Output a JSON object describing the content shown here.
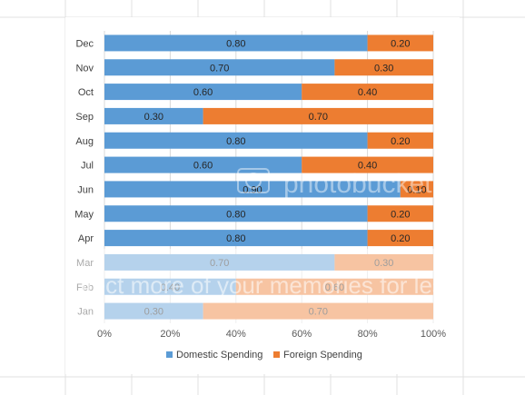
{
  "chart_data": {
    "type": "bar",
    "orientation": "horizontal",
    "stacked": "percent",
    "categories": [
      "Dec",
      "Nov",
      "Oct",
      "Sep",
      "Aug",
      "Jul",
      "Jun",
      "May",
      "Apr",
      "Mar",
      "Feb",
      "Jan"
    ],
    "series": [
      {
        "name": "Domestic Spending",
        "color": "#5b9bd5",
        "values": [
          0.8,
          0.7,
          0.6,
          0.3,
          0.8,
          0.6,
          0.9,
          0.8,
          0.8,
          0.7,
          0.4,
          0.3
        ],
        "labels": [
          "0.80",
          "0.70",
          "0.60",
          "0.30",
          "0.80",
          "0.60",
          "0.90",
          "0.80",
          "0.80",
          "0.70",
          "0.40",
          "0.30"
        ]
      },
      {
        "name": "Foreign Spending",
        "color": "#ed7d31",
        "values": [
          0.2,
          0.3,
          0.4,
          0.7,
          0.2,
          0.4,
          0.1,
          0.2,
          0.2,
          0.3,
          0.6,
          0.7
        ],
        "labels": [
          "0.20",
          "0.30",
          "0.40",
          "0.70",
          "0.20",
          "0.40",
          "0.10",
          "0.20",
          "0.20",
          "0.30",
          "0.60",
          "0.70"
        ]
      }
    ],
    "xticks": [
      "0%",
      "20%",
      "40%",
      "60%",
      "80%",
      "100%"
    ],
    "xlim": [
      0,
      1
    ],
    "title": "",
    "xlabel": "",
    "ylabel": "",
    "legend_position": "bottom",
    "grid": true
  },
  "watermark": {
    "text": "Protect more of your memories for less!",
    "brand": "photobucket"
  }
}
